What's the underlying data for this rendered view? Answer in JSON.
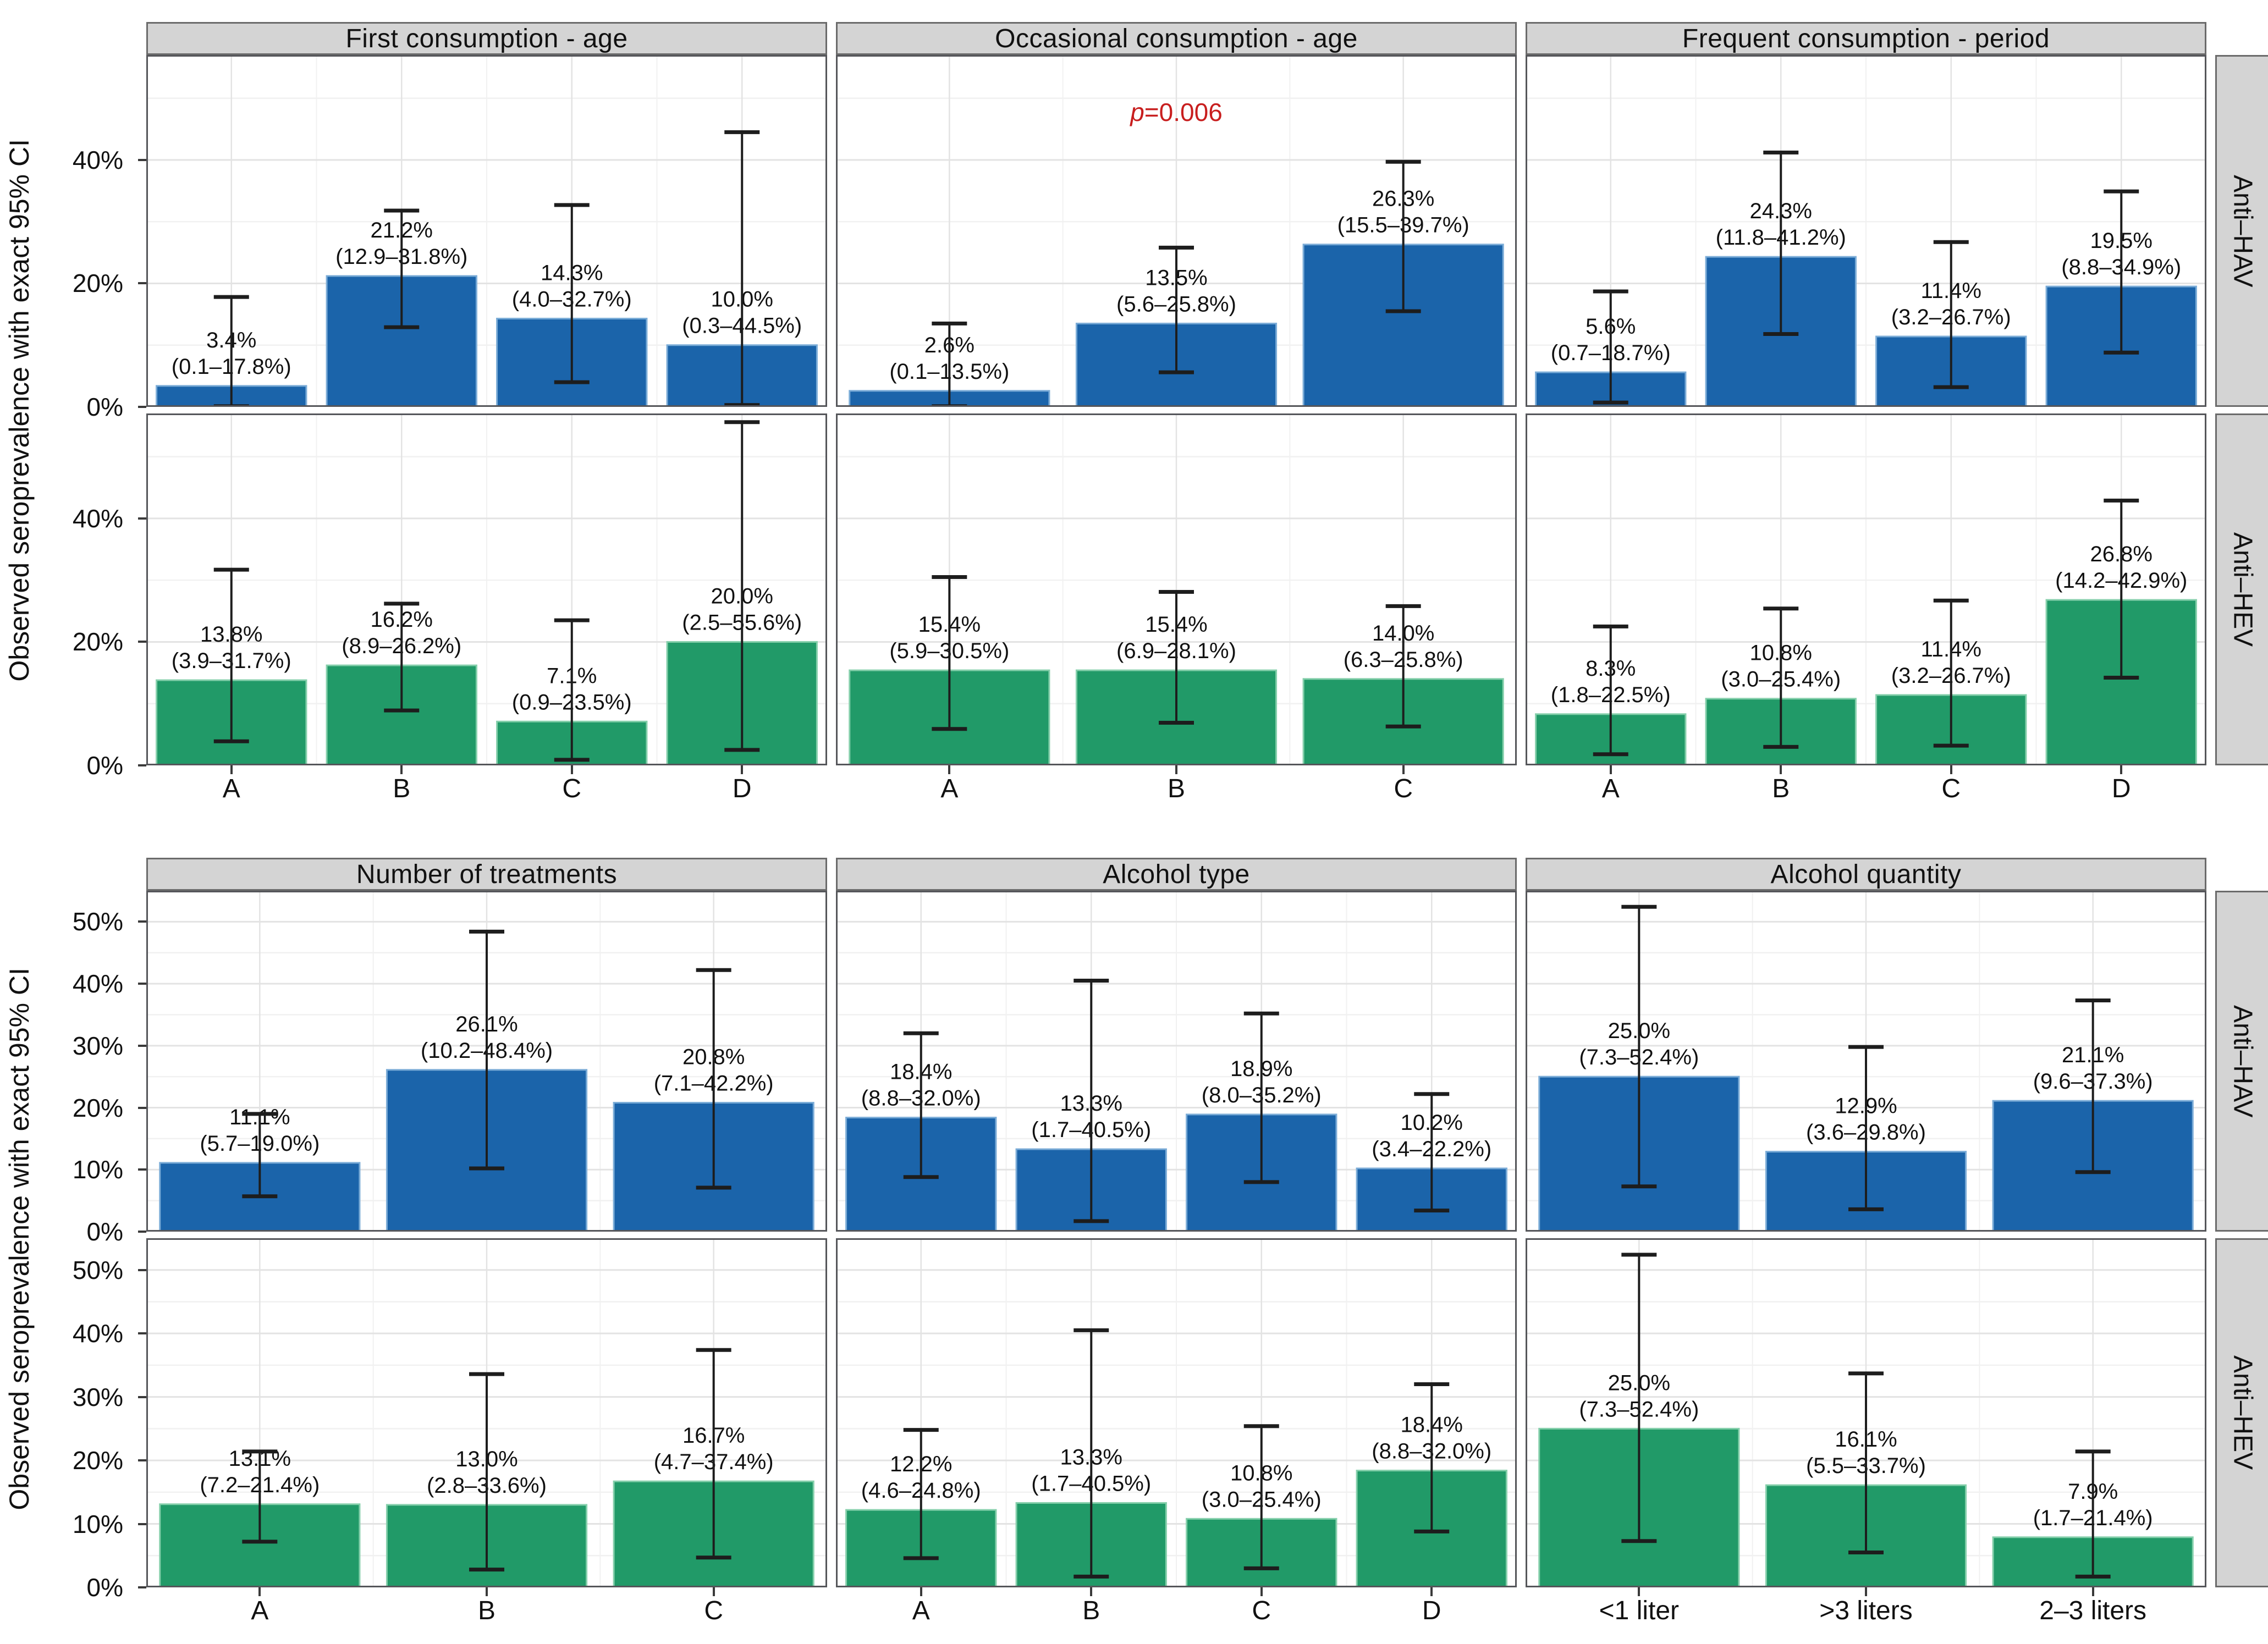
{
  "y_axis_label": "Observed seroprevalence with exact 95% CI",
  "colors": {
    "hav_fill": "#1b64aa",
    "hav_edge": "#7bacd7",
    "hev_fill": "#219a68",
    "hev_edge": "#85cfab",
    "annotation_red": "#c81e1e",
    "strip_bg": "#d4d4d4",
    "strip_border": "#6b6b6b",
    "panel_border": "#55565a",
    "grid_major": "#e3e3e3",
    "grid_minor": "#f1f1f1",
    "error_bar": "#1d1d1d",
    "tick_mark": "#3a3a3a",
    "text": "#111111"
  },
  "chart_data": [
    {
      "type": "bar",
      "y_axis": {
        "ticks": [
          0,
          20,
          40
        ],
        "tick_labels": [
          "0%",
          "20%",
          "40%"
        ],
        "minor": [
          10,
          30,
          50
        ],
        "max": 57
      },
      "facets": [
        {
          "title": "First consumption - age",
          "categories": [
            "A",
            "B",
            "C",
            "D"
          ]
        },
        {
          "title": "Occasional consumption - age",
          "categories": [
            "A",
            "B",
            "C"
          ],
          "annotation": {
            "text": "p=0.006",
            "italic": "p",
            "rest": "=0.006",
            "applies_to_row": "Anti–HAV"
          }
        },
        {
          "title": "Frequent consumption - period",
          "categories": [
            "A",
            "B",
            "C",
            "D"
          ]
        }
      ],
      "rows": [
        {
          "strip": "Anti–HAV",
          "color": "hav",
          "panels": [
            {
              "facet": "First consumption - age",
              "bars": [
                {
                  "category": "A",
                  "value": 3.4,
                  "ci_low": 0.1,
                  "ci_high": 17.8
                },
                {
                  "category": "B",
                  "value": 21.2,
                  "ci_low": 12.9,
                  "ci_high": 31.8
                },
                {
                  "category": "C",
                  "value": 14.3,
                  "ci_low": 4.0,
                  "ci_high": 32.7
                },
                {
                  "category": "D",
                  "value": 10.0,
                  "ci_low": 0.3,
                  "ci_high": 44.5
                }
              ]
            },
            {
              "facet": "Occasional consumption - age",
              "bars": [
                {
                  "category": "A",
                  "value": 2.6,
                  "ci_low": 0.1,
                  "ci_high": 13.5
                },
                {
                  "category": "B",
                  "value": 13.5,
                  "ci_low": 5.6,
                  "ci_high": 25.8
                },
                {
                  "category": "C",
                  "value": 26.3,
                  "ci_low": 15.5,
                  "ci_high": 39.7
                }
              ]
            },
            {
              "facet": "Frequent consumption - period",
              "bars": [
                {
                  "category": "A",
                  "value": 5.6,
                  "ci_low": 0.7,
                  "ci_high": 18.7
                },
                {
                  "category": "B",
                  "value": 24.3,
                  "ci_low": 11.8,
                  "ci_high": 41.2
                },
                {
                  "category": "C",
                  "value": 11.4,
                  "ci_low": 3.2,
                  "ci_high": 26.7
                },
                {
                  "category": "D",
                  "value": 19.5,
                  "ci_low": 8.8,
                  "ci_high": 34.9
                }
              ]
            }
          ]
        },
        {
          "strip": "Anti–HEV",
          "color": "hev",
          "panels": [
            {
              "facet": "First consumption - age",
              "bars": [
                {
                  "category": "A",
                  "value": 13.8,
                  "ci_low": 3.9,
                  "ci_high": 31.7
                },
                {
                  "category": "B",
                  "value": 16.2,
                  "ci_low": 8.9,
                  "ci_high": 26.2
                },
                {
                  "category": "C",
                  "value": 7.1,
                  "ci_low": 0.9,
                  "ci_high": 23.5
                },
                {
                  "category": "D",
                  "value": 20.0,
                  "ci_low": 2.5,
                  "ci_high": 55.6
                }
              ]
            },
            {
              "facet": "Occasional consumption - age",
              "bars": [
                {
                  "category": "A",
                  "value": 15.4,
                  "ci_low": 5.9,
                  "ci_high": 30.5
                },
                {
                  "category": "B",
                  "value": 15.4,
                  "ci_low": 6.9,
                  "ci_high": 28.1
                },
                {
                  "category": "C",
                  "value": 14.0,
                  "ci_low": 6.3,
                  "ci_high": 25.8
                }
              ]
            },
            {
              "facet": "Frequent consumption - period",
              "bars": [
                {
                  "category": "A",
                  "value": 8.3,
                  "ci_low": 1.8,
                  "ci_high": 22.5
                },
                {
                  "category": "B",
                  "value": 10.8,
                  "ci_low": 3.0,
                  "ci_high": 25.4
                },
                {
                  "category": "C",
                  "value": 11.4,
                  "ci_low": 3.2,
                  "ci_high": 26.7
                },
                {
                  "category": "D",
                  "value": 26.8,
                  "ci_low": 14.2,
                  "ci_high": 42.9
                }
              ]
            }
          ]
        }
      ]
    },
    {
      "type": "bar",
      "y_axis": {
        "ticks": [
          0,
          10,
          20,
          30,
          40,
          50
        ],
        "tick_labels": [
          "0%",
          "10%",
          "20%",
          "30%",
          "40%",
          "50%"
        ],
        "minor": [
          5,
          15,
          25,
          35,
          45
        ],
        "max": 55
      },
      "facets": [
        {
          "title": "Number of treatments",
          "categories": [
            "A",
            "B",
            "C"
          ]
        },
        {
          "title": "Alcohol type",
          "categories": [
            "A",
            "B",
            "C",
            "D"
          ]
        },
        {
          "title": "Alcohol quantity",
          "categories": [
            "<1 liter",
            ">3 liters",
            "2–3 liters"
          ]
        }
      ],
      "rows": [
        {
          "strip": "Anti–HAV",
          "color": "hav",
          "panels": [
            {
              "facet": "Number of treatments",
              "bars": [
                {
                  "category": "A",
                  "value": 11.1,
                  "ci_low": 5.7,
                  "ci_high": 19.0
                },
                {
                  "category": "B",
                  "value": 26.1,
                  "ci_low": 10.2,
                  "ci_high": 48.4
                },
                {
                  "category": "C",
                  "value": 20.8,
                  "ci_low": 7.1,
                  "ci_high": 42.2
                }
              ]
            },
            {
              "facet": "Alcohol type",
              "bars": [
                {
                  "category": "A",
                  "value": 18.4,
                  "ci_low": 8.8,
                  "ci_high": 32.0
                },
                {
                  "category": "B",
                  "value": 13.3,
                  "ci_low": 1.7,
                  "ci_high": 40.5
                },
                {
                  "category": "C",
                  "value": 18.9,
                  "ci_low": 8.0,
                  "ci_high": 35.2
                },
                {
                  "category": "D",
                  "value": 10.2,
                  "ci_low": 3.4,
                  "ci_high": 22.2
                }
              ]
            },
            {
              "facet": "Alcohol quantity",
              "bars": [
                {
                  "category": "<1 liter",
                  "value": 25.0,
                  "ci_low": 7.3,
                  "ci_high": 52.4
                },
                {
                  "category": ">3 liters",
                  "value": 12.9,
                  "ci_low": 3.6,
                  "ci_high": 29.8
                },
                {
                  "category": "2–3 liters",
                  "value": 21.1,
                  "ci_low": 9.6,
                  "ci_high": 37.3
                }
              ]
            }
          ]
        },
        {
          "strip": "Anti–HEV",
          "color": "hev",
          "panels": [
            {
              "facet": "Number of treatments",
              "bars": [
                {
                  "category": "A",
                  "value": 13.1,
                  "ci_low": 7.2,
                  "ci_high": 21.4
                },
                {
                  "category": "B",
                  "value": 13.0,
                  "ci_low": 2.8,
                  "ci_high": 33.6
                },
                {
                  "category": "C",
                  "value": 16.7,
                  "ci_low": 4.7,
                  "ci_high": 37.4
                }
              ]
            },
            {
              "facet": "Alcohol type",
              "bars": [
                {
                  "category": "A",
                  "value": 12.2,
                  "ci_low": 4.6,
                  "ci_high": 24.8
                },
                {
                  "category": "B",
                  "value": 13.3,
                  "ci_low": 1.7,
                  "ci_high": 40.5
                },
                {
                  "category": "C",
                  "value": 10.8,
                  "ci_low": 3.0,
                  "ci_high": 25.4
                },
                {
                  "category": "D",
                  "value": 18.4,
                  "ci_low": 8.8,
                  "ci_high": 32.0
                }
              ]
            },
            {
              "facet": "Alcohol quantity",
              "bars": [
                {
                  "category": "<1 liter",
                  "value": 25.0,
                  "ci_low": 7.3,
                  "ci_high": 52.4
                },
                {
                  "category": ">3 liters",
                  "value": 16.1,
                  "ci_low": 5.5,
                  "ci_high": 33.7
                },
                {
                  "category": "2–3 liters",
                  "value": 7.9,
                  "ci_low": 1.7,
                  "ci_high": 21.4
                }
              ]
            }
          ]
        }
      ]
    }
  ]
}
